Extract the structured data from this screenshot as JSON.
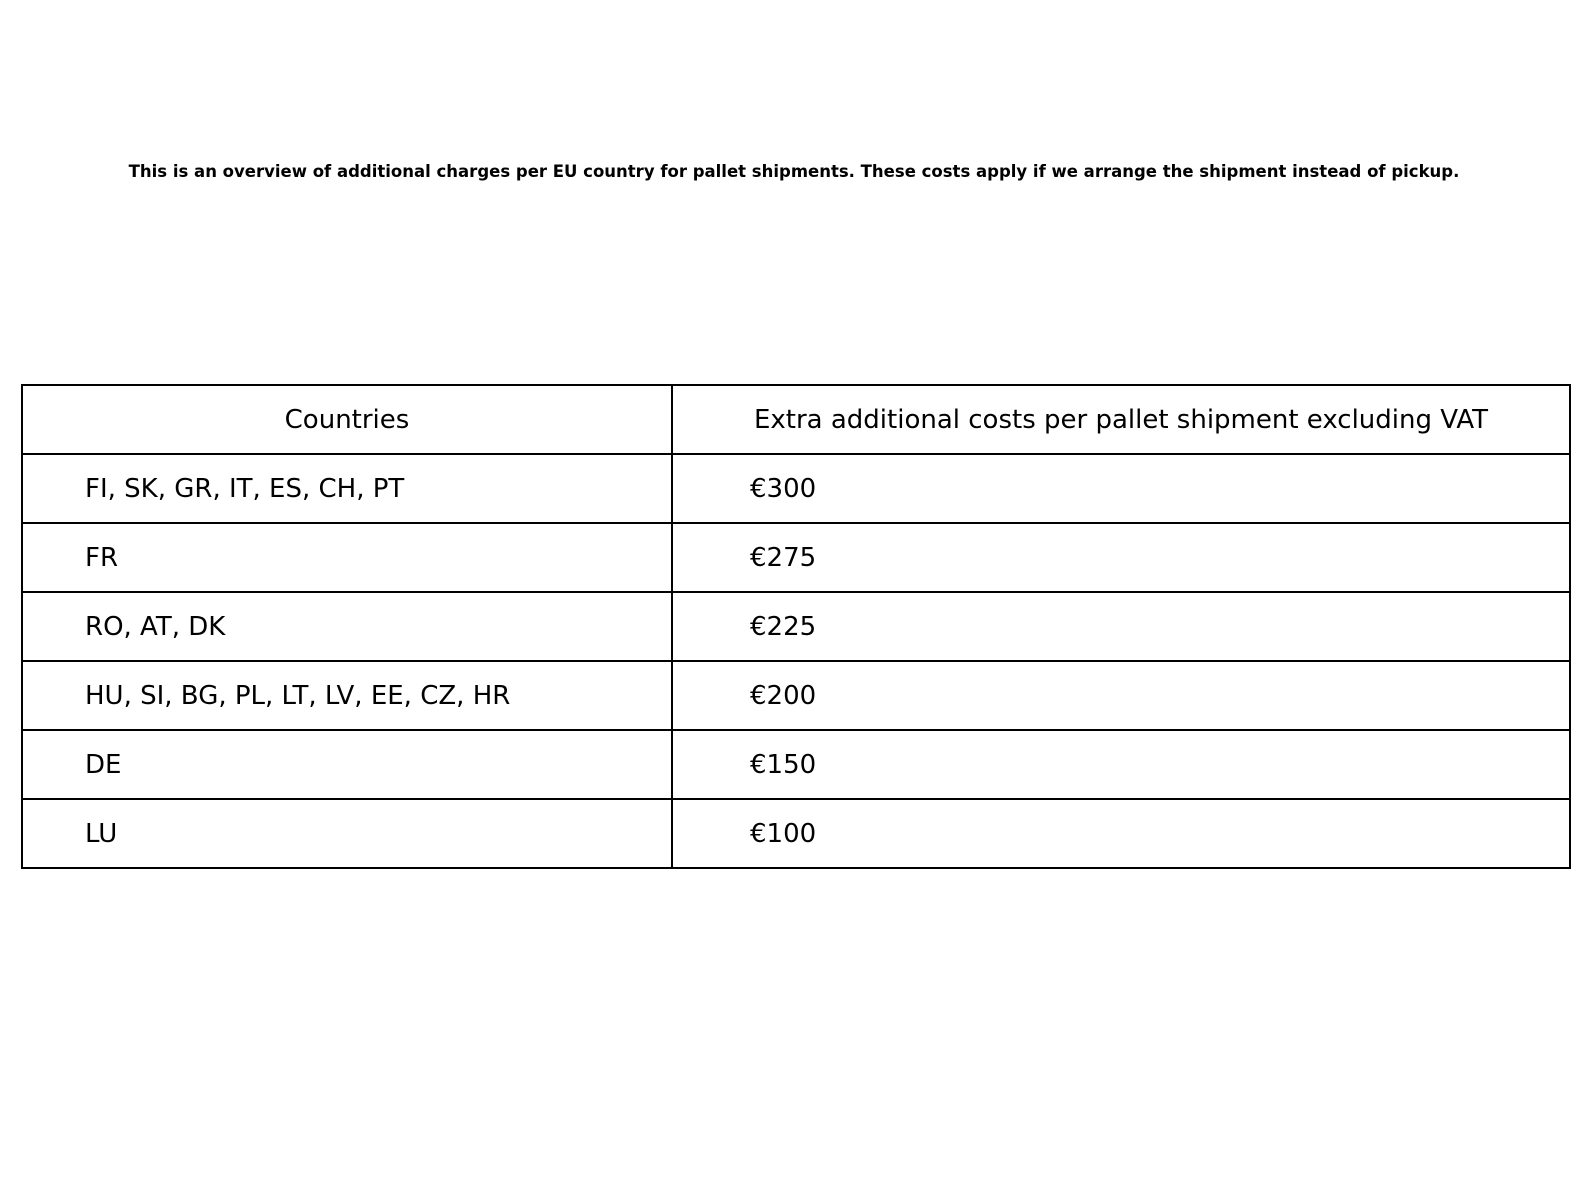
{
  "page": {
    "intro": "This is an overview of additional charges per EU country for pallet shipments. These costs apply if we arrange the shipment instead of pickup."
  },
  "table": {
    "col_headers": {
      "countries": "Countries",
      "cost": "Extra additional costs per pallet shipment excluding VAT"
    },
    "rows": [
      {
        "countries": "FI, SK, GR, IT, ES, CH, PT",
        "cost": "€300"
      },
      {
        "countries": "FR",
        "cost": "€275"
      },
      {
        "countries": "RO, AT, DK",
        "cost": "€225"
      },
      {
        "countries": "HU, SI, BG, PL, LT, LV, EE, CZ, HR",
        "cost": "€200"
      },
      {
        "countries": "DE",
        "cost": "€150"
      },
      {
        "countries": "LU",
        "cost": "€100"
      }
    ]
  },
  "colors": {
    "background": "#ffffff",
    "text": "#000000",
    "border": "#000000"
  },
  "chart_data": {
    "type": "table",
    "columns": [
      "Countries",
      "Extra additional costs per pallet shipment excluding VAT"
    ],
    "rows": [
      [
        "FI, SK, GR, IT, ES, CH, PT",
        "€300"
      ],
      [
        "FR",
        "€275"
      ],
      [
        "RO, AT, DK",
        "€225"
      ],
      [
        "HU, SI, BG, PL, LT, LV, EE, CZ, HR",
        "€200"
      ],
      [
        "DE",
        "€150"
      ],
      [
        "LU",
        "€100"
      ]
    ]
  }
}
